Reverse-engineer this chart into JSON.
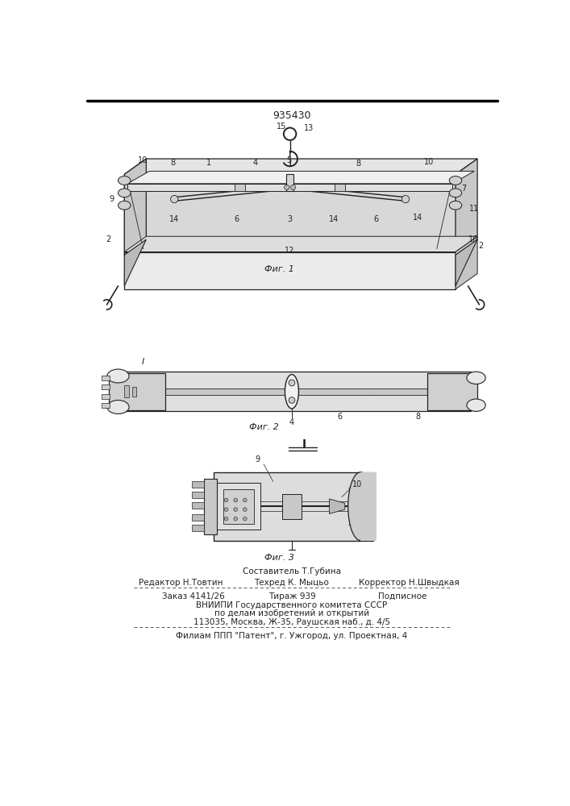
{
  "patent_number": "935430",
  "fig1_label": "Фиг. 1",
  "fig2_label": "Фиг. 2",
  "fig3_label": "Фиг. 3",
  "footer_sestavitel": "Составитель Т.Губина",
  "footer_redaktor": "Редактор Н.Товтин",
  "footer_tehred": "Техред К. Мыцьо",
  "footer_korrektor": "Корректор Н.Швыдкая",
  "footer_zakaz": "Заказ 4141/26",
  "footer_tirazh": "Тираж 939",
  "footer_podpisnoe": "Подписное",
  "footer_vniip": "ВНИИПИ Государственного комитета СССР",
  "footer_podelu": "по делам изобретений и открытий",
  "footer_addr": "113035, Москва, Ж-35, Раушская наб., д. 4/5",
  "footer_filial": "Филиам ППП \"Патент\", г. Ужгород, ул. Проектная, 4",
  "bg_color": "#ffffff",
  "lc": "#222222"
}
